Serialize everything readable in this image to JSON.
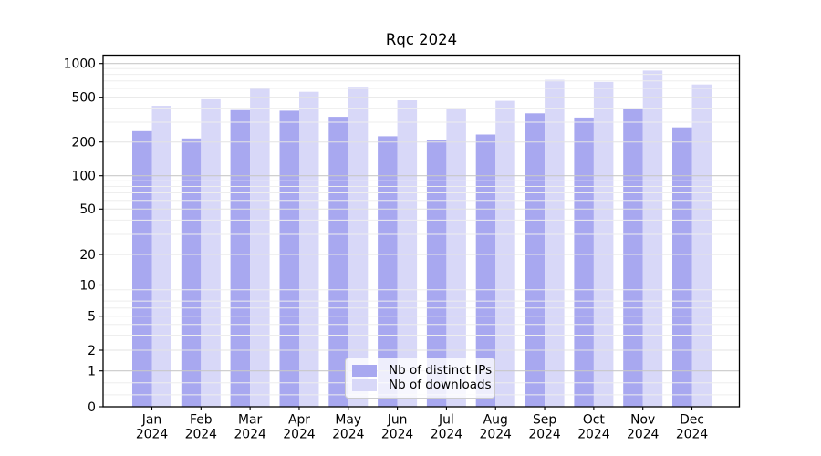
{
  "figure": {
    "title": "Rqc 2024"
  },
  "chart_data": {
    "type": "bar",
    "title": "Rqc 2024",
    "categories": [
      "Jan",
      "Feb",
      "Mar",
      "Apr",
      "May",
      "Jun",
      "Jul",
      "Aug",
      "Sep",
      "Oct",
      "Nov",
      "Dec"
    ],
    "category_year": "2024",
    "series": [
      {
        "name": "Nb of distinct IPs",
        "color": "#a8a8f0",
        "values": [
          250,
          215,
          385,
          380,
          335,
          225,
          210,
          233,
          360,
          330,
          390,
          270
        ]
      },
      {
        "name": "Nb of downloads",
        "color": "#d8d8f8",
        "values": [
          420,
          480,
          605,
          560,
          620,
          470,
          390,
          465,
          715,
          685,
          865,
          650
        ]
      }
    ],
    "yscale": "symlog",
    "y_ticks": [
      0,
      1,
      2,
      5,
      10,
      20,
      50,
      100,
      200,
      500,
      1000
    ],
    "ylim": [
      0,
      1200
    ],
    "grid": {
      "which": "both",
      "major_color": "#c9c9c9",
      "mid_color": "#e3e3e3",
      "minor_color": "#eeeeee",
      "drawn_above_bars": true
    },
    "legend": {
      "position": "lower center",
      "entries": [
        "Nb of distinct IPs",
        "Nb of downloads"
      ]
    },
    "axis_color": "#000000",
    "background": "#ffffff"
  }
}
